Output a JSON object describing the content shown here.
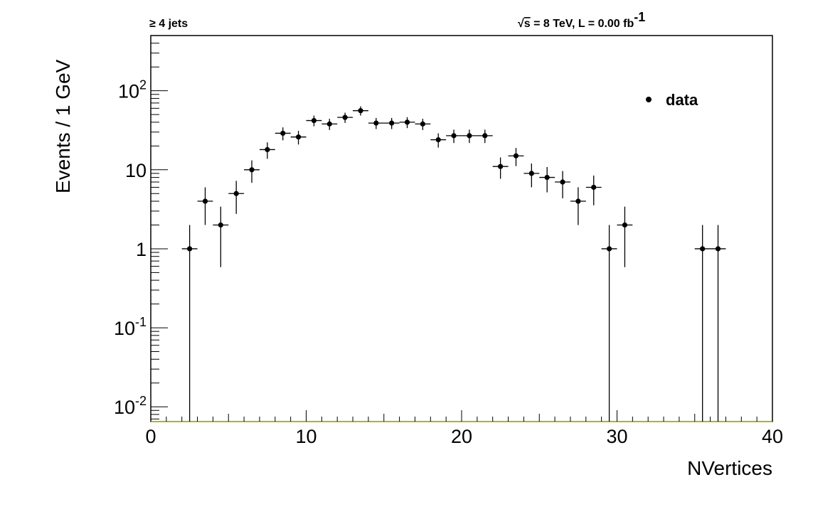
{
  "chart_data": {
    "type": "scatter",
    "header_left": "≥ 4 jets",
    "header_right": {
      "sqrt_sym": "√",
      "s_text": "s",
      "main": " = 8 TeV, L = 0.00 fb",
      "sup": "-1"
    },
    "xlabel": "NVertices",
    "ylabel": "Events / 1 GeV",
    "xlim": [
      0,
      40
    ],
    "ylim": [
      0.0065,
      500
    ],
    "yscale": "log",
    "x_ticks": [
      {
        "value": 0,
        "label": "0"
      },
      {
        "value": 10,
        "label": "10"
      },
      {
        "value": 20,
        "label": "20"
      },
      {
        "value": 30,
        "label": "30"
      },
      {
        "value": 40,
        "label": "40"
      }
    ],
    "y_ticks": [
      {
        "value": 0.01,
        "base": "10",
        "exp": "-2"
      },
      {
        "value": 0.1,
        "base": "10",
        "exp": "-1"
      },
      {
        "value": 1,
        "base": "1",
        "exp": ""
      },
      {
        "value": 10,
        "base": "10",
        "exp": ""
      },
      {
        "value": 100,
        "base": "10",
        "exp": "2"
      }
    ],
    "legend": {
      "label": "data",
      "placement": "top-right"
    },
    "grid": false,
    "series": [
      {
        "name": "data",
        "color": "#000000",
        "x": [
          2.5,
          3.5,
          4.5,
          5.5,
          6.5,
          7.5,
          8.5,
          9.5,
          10.5,
          11.5,
          12.5,
          13.5,
          14.5,
          15.5,
          16.5,
          17.5,
          18.5,
          19.5,
          20.5,
          21.5,
          22.5,
          23.5,
          24.5,
          25.5,
          26.5,
          27.5,
          28.5,
          29.5,
          30.5,
          35.5,
          36.5
        ],
        "y": [
          1,
          4,
          2,
          5,
          10,
          18,
          29,
          26,
          42,
          38,
          46,
          56,
          39,
          39,
          40,
          38,
          24,
          27,
          27,
          27,
          11,
          15,
          9,
          8,
          7,
          4,
          6,
          1,
          2,
          1,
          1
        ]
      }
    ]
  }
}
